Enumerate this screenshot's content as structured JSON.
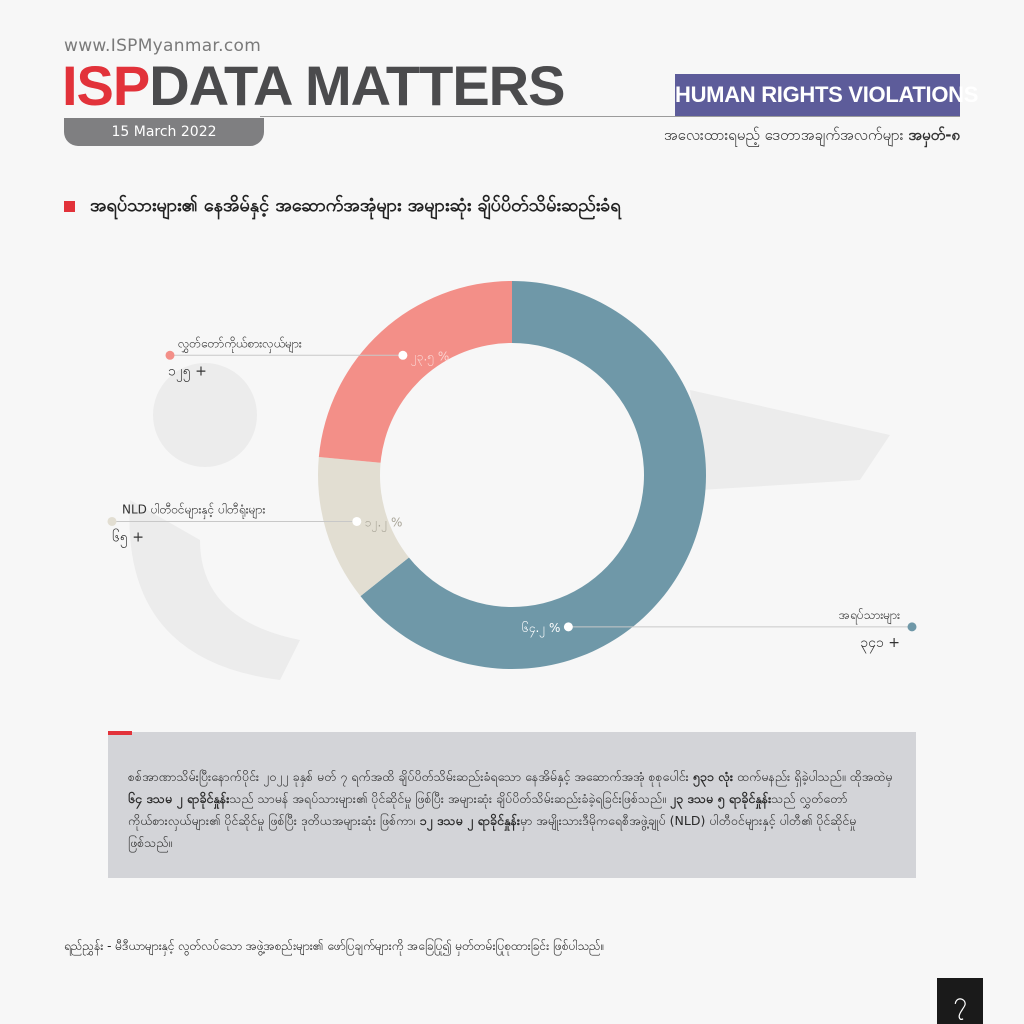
{
  "header": {
    "site_url": "www.ISPMyanmar.com",
    "brand_isp": "ISP",
    "brand_title": "DATA MATTERS",
    "date": "15 March 2022",
    "category": "HUMAN RIGHTS VIOLATIONS",
    "fact_label_prefix": "အလေးထားရမည့် ဒေတာအချက်အလက်များ",
    "fact_label_number": "အမှတ်-၈"
  },
  "chart_data": {
    "type": "pie",
    "title": "အရပ်သားများ၏ နေအိမ်နှင့် အဆောက်အအုံများ အများဆုံး ချိပ်ပိတ်သိမ်းဆည်းခံရ",
    "slices": [
      {
        "label": "အရပ်သားများ",
        "count_label": "၃၄၁ +",
        "percent": 64.2,
        "percent_label": "၆၄.၂ %",
        "color": "#6f98a8"
      },
      {
        "label": "NLD ပါတီဝင်များနှင့် ပါတီရုံးများ",
        "count_label": "၆၅ +",
        "percent": 12.2,
        "percent_label": "၁၂.၂ %",
        "color": "#e2ded2"
      },
      {
        "label": "လွှတ်တော်ကိုယ်စားလှယ်များ",
        "count_label": "၁၂၅ +",
        "percent": 23.5,
        "percent_label": "၂၃.၅ %",
        "color": "#f38f88"
      }
    ]
  },
  "summary": {
    "p1": "စစ်အာဏာသိမ်းပြီးနောက်ပိုင်း ၂၀၂၂ ခုနှစ် မတ် ၇ ရက်အထိ ချိပ်ပိတ်သိမ်းဆည်းခံရသော နေအိမ်နှင့် အဆောက်အအုံ စုစုပေါင်း ",
    "b1": "၅၃၁ လုံး",
    "p2": " ထက်မနည်း ရှိခဲ့ပါသည်။ ထိုအထဲမှ ",
    "b2": "၆၄ ဒသမ ၂ ရာခိုင်နှုန်း",
    "p3": "သည် သာမန် အရပ်သားများ၏ ပိုင်ဆိုင်မှု ဖြစ်ပြီး အများဆုံး ချိပ်ပိတ်သိမ်းဆည်းခံခဲ့ရခြင်းဖြစ်သည်။ ",
    "b3": "၂၃ ဒသမ ၅ ရာခိုင်နှုန်း",
    "p4": "သည် လွှတ်တော်ကိုယ်စားလှယ်များ၏ ပိုင်ဆိုင်မှု ဖြစ်ပြီး ဒုတိယအများဆုံး ဖြစ်ကာ၊ ",
    "b4": "၁၂ ဒသမ ၂ ရာခိုင်နှုန်း",
    "p5": "မှာ အမျိုးသားဒီမိုကရေစီအဖွဲ့ချုပ် (NLD) ပါတီဝင်များနှင့် ပါတီ၏ ပိုင်ဆိုင်မှု ဖြစ်သည်။"
  },
  "source_note": "ရည်ညွှန်း - မီဒီယာများနှင့် လွတ်လပ်သော အဖွဲ့အစည်းများ၏ ဖော်ပြချက်များကို အခြေပြု၍ မှတ်တမ်းပြုစုထားခြင်း ဖြစ်ပါသည်။",
  "page_number": "၇"
}
